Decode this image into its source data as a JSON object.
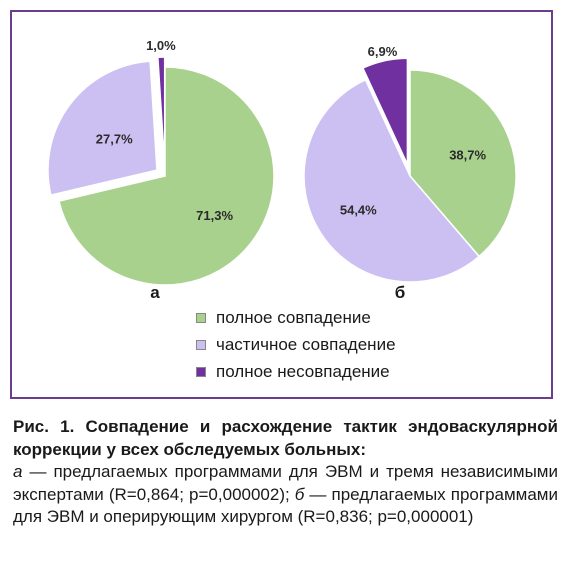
{
  "chart_data": [
    {
      "type": "pie",
      "panel_label": "а",
      "categories": [
        "полное совпадение",
        "частичное совпадение",
        "полное несовпадение"
      ],
      "values": [
        71.3,
        27.7,
        1.0
      ],
      "value_labels": [
        "71,3%",
        "27,7%",
        "1,0%"
      ],
      "exploded": [
        false,
        true,
        true
      ]
    },
    {
      "type": "pie",
      "panel_label": "б",
      "categories": [
        "полное совпадение",
        "частичное совпадение",
        "полное несовпадение"
      ],
      "values": [
        38.7,
        54.4,
        6.9
      ],
      "value_labels": [
        "38,7%",
        "54,4%",
        "6,9%"
      ],
      "exploded": [
        false,
        false,
        true
      ]
    }
  ],
  "colors": [
    "#a9d18e",
    "#ccc0f2",
    "#7030a0"
  ],
  "legend": {
    "items": [
      {
        "label": "полное совпадение",
        "color": "#a9d18e"
      },
      {
        "label": "частичное совпадение",
        "color": "#ccc0f2"
      },
      {
        "label": "полное несовпадение",
        "color": "#7030a0"
      }
    ]
  },
  "caption": {
    "title": "Рис. 1. Совпадение и расхождение тактик эндоваскулярной коррекции у всех обследуемых больных:",
    "a_letter": "а",
    "a_text": " — предлагаемых программами для ЭВМ и тремя независимыми экспертами (R=0,864; p=0,000002); ",
    "b_letter": "б",
    "b_text": " — предлагаемых программами для ЭВМ и оперирующим хирургом (R=0,836; p=0,000001)"
  }
}
